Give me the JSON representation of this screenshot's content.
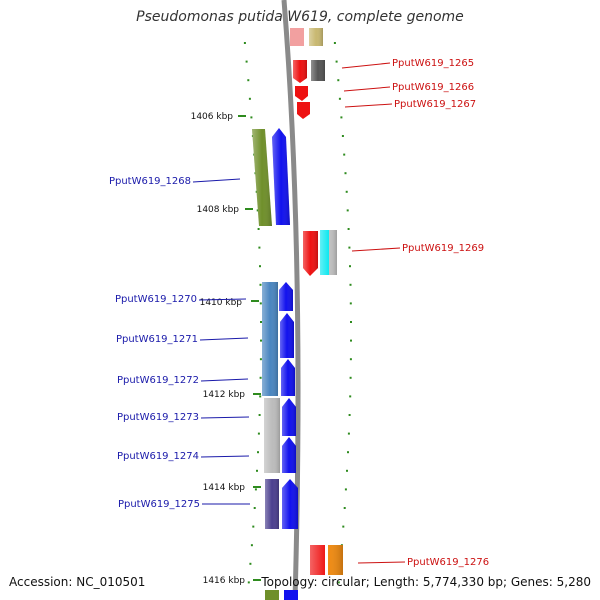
{
  "title": "Pseudomonas putida W619, complete genome",
  "accession": "Accession: NC_010501",
  "topology": "Topology: circular; Length: 5,774,330 bp; Genes: 5,280",
  "colors": {
    "backbone": "#8a8a8a",
    "tick": "#2e8b1e",
    "label_forward": "#1a1aaa",
    "label_reverse": "#cc1111",
    "red": "#ee1111",
    "blue": "#1111ee",
    "olive": "#6f8f2a",
    "steelblue": "#4a86c0",
    "silver": "#bcbcbc",
    "purple": "#4b3f8f",
    "orange": "#f08a10",
    "tan": "#c8b870",
    "gray": "#555555",
    "cyan": "#10e8f0"
  },
  "scale_ticks": [
    "1406 kbp",
    "1408 kbp",
    "1410 kbp",
    "1412 kbp",
    "1414 kbp",
    "1416 kbp"
  ],
  "gene_labels": {
    "g1265": "PputW619_1265",
    "g1266": "PputW619_1266",
    "g1267": "PputW619_1267",
    "g1268": "PputW619_1268",
    "g1269": "PputW619_1269",
    "g1270": "PputW619_1270",
    "g1271": "PputW619_1271",
    "g1272": "PputW619_1272",
    "g1273": "PputW619_1273",
    "g1274": "PputW619_1274",
    "g1275": "PputW619_1275",
    "g1276": "PputW619_1276"
  }
}
